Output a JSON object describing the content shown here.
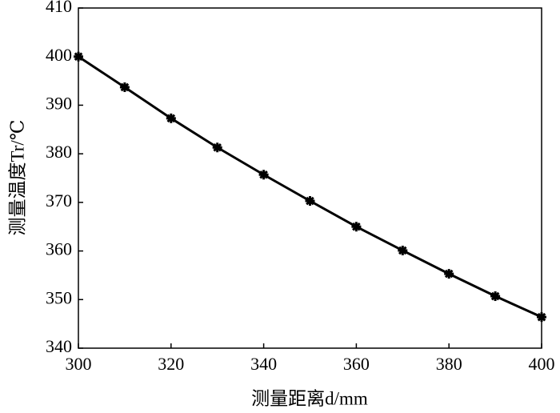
{
  "chart_data": {
    "type": "line",
    "x_label": "测量距离d/mm",
    "y_label": "测量温度Tr/℃",
    "x": [
      300,
      310,
      320,
      330,
      340,
      350,
      360,
      370,
      380,
      390,
      400
    ],
    "series": [
      {
        "color": "#000000",
        "values": [
          400,
          393.7,
          387.3,
          381.3,
          375.7,
          370.3,
          365.0,
          360.1,
          355.3,
          350.7,
          346.4
        ]
      }
    ],
    "xlim": [
      300,
      400
    ],
    "xticks": [
      300,
      320,
      340,
      360,
      380,
      400
    ],
    "ylim": [
      340,
      410
    ],
    "yticks": [
      340,
      350,
      360,
      370,
      380,
      390,
      400,
      410
    ]
  }
}
